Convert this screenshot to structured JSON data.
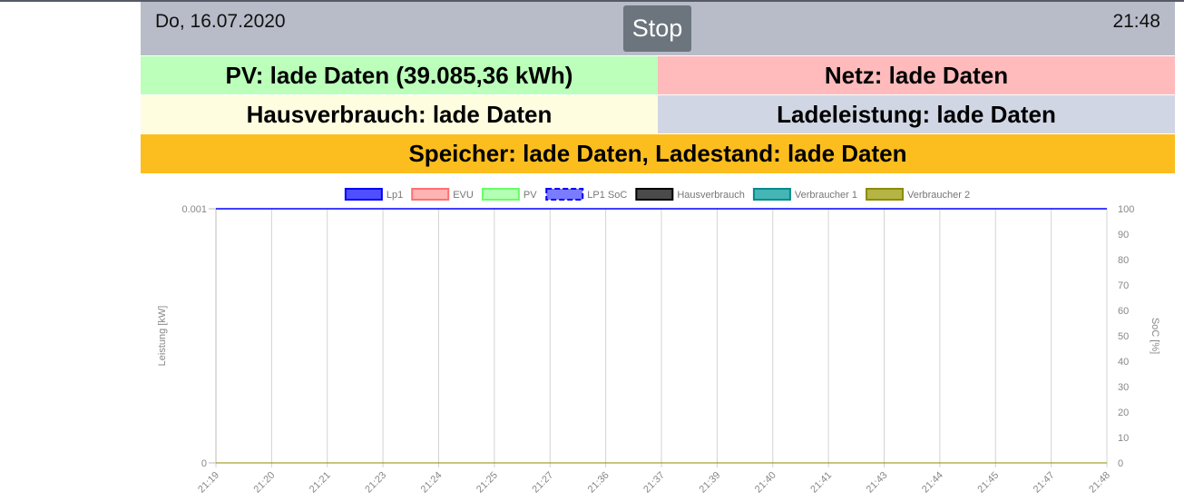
{
  "header": {
    "date": "Do, 16.07.2020",
    "time": "21:48",
    "stop_label": "Stop"
  },
  "tiles": {
    "pv": "PV: lade Daten (39.085,36 kWh)",
    "netz": "Netz: lade Daten",
    "hausverbrauch": "Hausverbrauch: lade Daten",
    "ladeleistung": "Ladeleistung: lade Daten",
    "speicher": "Speicher: lade Daten, Ladestand: lade Daten"
  },
  "colors": {
    "header_bg": "#b8bcc8",
    "pv_bg": "#bbffbb",
    "netz_bg": "#ffbbbb",
    "haus_bg": "#fffde0",
    "lade_bg": "#d1d6e4",
    "speicher_bg": "#fcbe1e",
    "stop_bg": "#6c757d"
  },
  "chart_data": {
    "type": "line",
    "legend_position": "top",
    "grid": true,
    "ylabel": "Leistung [kW]",
    "y2label": "SoC [%]",
    "ylim": [
      0,
      0.001
    ],
    "y_ticks": [
      "0.001",
      "0"
    ],
    "y2lim": [
      0,
      100
    ],
    "y2_ticks": [
      "100",
      "90",
      "80",
      "70",
      "60",
      "50",
      "40",
      "30",
      "20",
      "10",
      "0"
    ],
    "x": [
      "21:19",
      "21:20",
      "21:21",
      "21:23",
      "21:24",
      "21:25",
      "21:27",
      "21:36",
      "21:37",
      "21:39",
      "21:40",
      "21:41",
      "21:43",
      "21:44",
      "21:45",
      "21:47",
      "21:48"
    ],
    "series": [
      {
        "name": "Lp1",
        "axis": "left",
        "color": "#0000ff",
        "fill": "#4f4fff",
        "dashed": false,
        "values": [
          0,
          0,
          0,
          0,
          0,
          0,
          0,
          0,
          0,
          0,
          0,
          0,
          0,
          0,
          0,
          0,
          0
        ]
      },
      {
        "name": "EVU",
        "axis": "left",
        "color": "#ff7070",
        "fill": "#ffb3b3",
        "dashed": false,
        "values": [
          0,
          0,
          0,
          0,
          0,
          0,
          0,
          0,
          0,
          0,
          0,
          0,
          0,
          0,
          0,
          0,
          0
        ]
      },
      {
        "name": "PV",
        "axis": "left",
        "color": "#66ff66",
        "fill": "#b3ffb3",
        "dashed": false,
        "values": [
          0,
          0,
          0,
          0,
          0,
          0,
          0,
          0,
          0,
          0,
          0,
          0,
          0,
          0,
          0,
          0,
          0
        ]
      },
      {
        "name": "LP1 SoC",
        "axis": "right",
        "color": "#0000ff",
        "fill": "#7b7bff",
        "dashed": true,
        "values": [
          100,
          100,
          100,
          100,
          100,
          100,
          100,
          100,
          100,
          100,
          100,
          100,
          100,
          100,
          100,
          100,
          100
        ]
      },
      {
        "name": "Hausverbrauch",
        "axis": "left",
        "color": "#000000",
        "fill": "#4a4a4a",
        "dashed": false,
        "values": [
          0,
          0,
          0,
          0,
          0,
          0,
          0,
          0,
          0,
          0,
          0,
          0,
          0,
          0,
          0,
          0,
          0
        ]
      },
      {
        "name": "Verbraucher 1",
        "axis": "left",
        "color": "#008b8b",
        "fill": "#45b5b5",
        "dashed": false,
        "values": [
          0,
          0,
          0,
          0,
          0,
          0,
          0,
          0,
          0,
          0,
          0,
          0,
          0,
          0,
          0,
          0,
          0
        ]
      },
      {
        "name": "Verbraucher 2",
        "axis": "left",
        "color": "#8b8b00",
        "fill": "#b5b545",
        "dashed": false,
        "values": [
          0,
          0,
          0,
          0,
          0,
          0,
          0,
          0,
          0,
          0,
          0,
          0,
          0,
          0,
          0,
          0,
          0
        ]
      }
    ]
  }
}
